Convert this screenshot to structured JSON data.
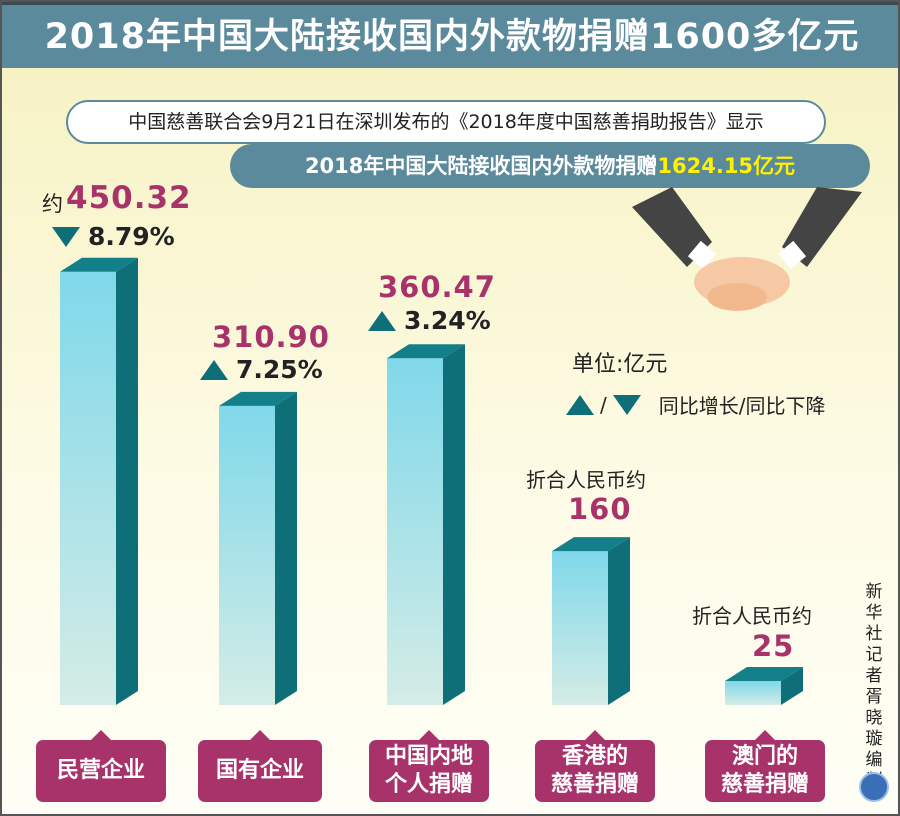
{
  "title": "2018年中国大陆接收国内外款物捐赠1600多亿元",
  "subtitle": "中国慈善联合会9月21日在深圳发布的《2018年度中国慈善捐助报告》显示",
  "headline": {
    "text": "2018年中国大陆接收国内外款物捐赠",
    "highlight": "1624.15亿元",
    "highlight_color": "#fff200"
  },
  "legend": {
    "unit": "单位:亿元",
    "slash": "/",
    "text": "同比增长/同比下降"
  },
  "credit": "新华社记者 胥晓璇 编制",
  "chart_data": {
    "type": "bar",
    "categories": [
      "民营企业",
      "国有企业",
      "中国内地个人捐赠",
      "香港的慈善捐赠",
      "澳门的慈善捐赠"
    ],
    "values": [
      450.32,
      310.9,
      360.47,
      160,
      25
    ],
    "value_labels": [
      "450.32",
      "310.90",
      "360.47",
      "160",
      "25"
    ],
    "prefixes": [
      "约",
      "",
      "",
      "折合人民币约",
      "折合人民币约"
    ],
    "changes": [
      {
        "dir": "down",
        "text": "8.79%"
      },
      {
        "dir": "up",
        "text": "7.25%"
      },
      {
        "dir": "up",
        "text": "3.24%"
      },
      null,
      null
    ],
    "label_lines": [
      [
        "民营企业"
      ],
      [
        "国有企业"
      ],
      [
        "中国内地",
        "个人捐赠"
      ],
      [
        "香港的",
        "慈善捐赠"
      ],
      [
        "澳门的",
        "慈善捐赠"
      ]
    ],
    "unit": "亿元",
    "colors": {
      "front_top": "#7fd8ea",
      "front_bottom": "#d4ece6",
      "side": "#0e6f78",
      "top": "#137f88",
      "label_bg": "#a8336a",
      "value": "#a8336a"
    }
  }
}
